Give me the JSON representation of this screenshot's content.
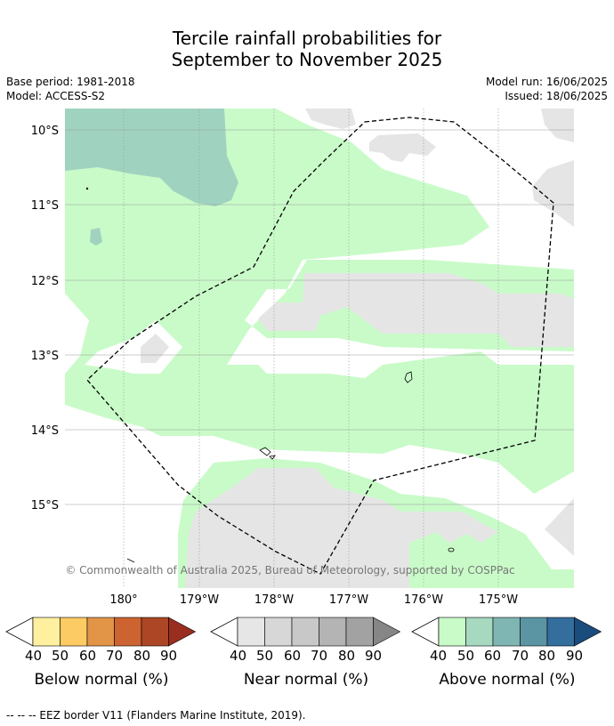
{
  "title": {
    "line1": "Tercile rainfall probabilities for",
    "line2": "September to November 2025"
  },
  "meta": {
    "base_period": "Base period: 1981-2018",
    "model": "Model: ACCESS-S2",
    "model_run": "Model run: 16/06/2025",
    "issued": "Issued: 18/06/2025"
  },
  "map": {
    "lat_labels": [
      "10°S",
      "11°S",
      "12°S",
      "13°S",
      "14°S",
      "15°S"
    ],
    "lon_labels": [
      "180°",
      "179°W",
      "178°W",
      "177°W",
      "176°W",
      "175°W"
    ],
    "copyright": "© Commonwealth of Australia 2025, Bureau of Meteorology, supported by COSPPac",
    "colors": {
      "above_40": "#c9fbc9",
      "above_50": "#a0d3bf",
      "near_40": "#e5e5e5",
      "white": "#ffffff"
    }
  },
  "legend": {
    "ticks": [
      "40",
      "50",
      "60",
      "70",
      "80",
      "90"
    ],
    "below": {
      "label": "Below normal (%)",
      "colors": [
        "#fff0a0",
        "#fdcb63",
        "#e29447",
        "#cc6330",
        "#ac4624",
        "#992e20"
      ]
    },
    "near": {
      "label": "Near normal (%)",
      "colors": [
        "#e6e6e6",
        "#d7d7d7",
        "#c8c8c8",
        "#b4b4b4",
        "#a2a2a2",
        "#868686"
      ]
    },
    "above": {
      "label": "Above normal (%)",
      "colors": [
        "#c9fbc9",
        "#a6d9bf",
        "#7fb6b3",
        "#5b94a3",
        "#336e9d",
        "#1a4c7c"
      ]
    }
  },
  "footer": {
    "text": "-- -- -- EEZ border V11 (Flanders Marine Institute, 2019)."
  }
}
